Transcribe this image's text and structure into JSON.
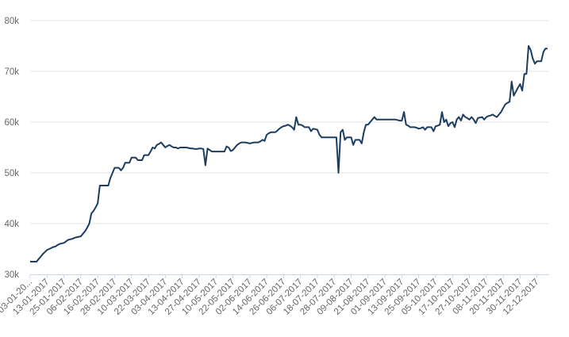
{
  "chart_data": {
    "type": "line",
    "categories": [
      "03-01-20...",
      null,
      null,
      null,
      null,
      null,
      null,
      null,
      "13-01-2017",
      null,
      null,
      null,
      null,
      null,
      null,
      null,
      "25-01-2017",
      null,
      null,
      null,
      null,
      null,
      null,
      null,
      "06-02-2017",
      null,
      null,
      null,
      null,
      null,
      null,
      null,
      "16-02-2017",
      null,
      null,
      null,
      null,
      null,
      null,
      null,
      "28-02-2017",
      null,
      null,
      null,
      null,
      null,
      null,
      null,
      "10-03-2017",
      null,
      null,
      null,
      null,
      null,
      null,
      null,
      "22-03-2017",
      null,
      null,
      null,
      null,
      null,
      null,
      null,
      "03-04-2017",
      null,
      null,
      null,
      null,
      null,
      null,
      null,
      "13-04-2017",
      null,
      null,
      null,
      null,
      null,
      null,
      null,
      "27-04-2017",
      null,
      null,
      null,
      null,
      null,
      null,
      null,
      "10-05-2017",
      null,
      null,
      null,
      null,
      null,
      null,
      null,
      "22-05-2017",
      null,
      null,
      null,
      null,
      null,
      null,
      null,
      "02-06-2017",
      null,
      null,
      null,
      null,
      null,
      null,
      null,
      "14-06-2017",
      null,
      null,
      null,
      null,
      null,
      null,
      null,
      "26-06-2017",
      null,
      null,
      null,
      null,
      null,
      null,
      null,
      "06-07-2017",
      null,
      null,
      null,
      null,
      null,
      null,
      null,
      "18-07-2017",
      null,
      null,
      null,
      null,
      null,
      null,
      null,
      "28-07-2017",
      null,
      null,
      null,
      null,
      null,
      null,
      null,
      "09-08-2017",
      null,
      null,
      null,
      null,
      null,
      null,
      null,
      "21-08-2017",
      null,
      null,
      null,
      null,
      null,
      null,
      null,
      "01-09-2017",
      null,
      null,
      null,
      null,
      null,
      null,
      null,
      "13-09-2017",
      null,
      null,
      null,
      null,
      null,
      null,
      null,
      "25-09-2017",
      null,
      null,
      null,
      null,
      null,
      null,
      null,
      "05-10-2017",
      null,
      null,
      null,
      null,
      null,
      null,
      null,
      "17-10-2017",
      null,
      null,
      null,
      null,
      null,
      null,
      null,
      "27-10-2017",
      null,
      null,
      null,
      null,
      null,
      null,
      null,
      "08-11-2017",
      null,
      null,
      null,
      null,
      null,
      null,
      null,
      "20-11-2017",
      null,
      null,
      null,
      null,
      null,
      null,
      null,
      "30-11-2017",
      null,
      null,
      null,
      null,
      null,
      null,
      null,
      "12-12-2017",
      null,
      null,
      null,
      null,
      null
    ],
    "values": [
      32500,
      32500,
      32500,
      32500,
      33000,
      33500,
      34000,
      34400,
      34800,
      35000,
      35200,
      35400,
      35500,
      35800,
      36000,
      36100,
      36200,
      36500,
      36800,
      36900,
      37000,
      37200,
      37300,
      37400,
      37500,
      38000,
      38500,
      39200,
      40000,
      42000,
      42500,
      43200,
      44000,
      47500,
      47500,
      47500,
      47500,
      47500,
      49000,
      50000,
      51000,
      51000,
      51000,
      50500,
      51000,
      52000,
      52000,
      52000,
      53000,
      53000,
      53000,
      52500,
      52500,
      52500,
      53500,
      53500,
      53500,
      54200,
      55000,
      54800,
      55500,
      55700,
      56000,
      55500,
      55000,
      55300,
      55500,
      55200,
      55000,
      55000,
      54800,
      55000,
      55000,
      55000,
      55000,
      54900,
      54800,
      54800,
      54700,
      54700,
      54800,
      54800,
      54700,
      51500,
      54800,
      54500,
      54200,
      54200,
      54200,
      54200,
      54200,
      54200,
      54200,
      55200,
      55000,
      54300,
      54500,
      55000,
      55500,
      55800,
      56000,
      56000,
      56000,
      55900,
      55800,
      55900,
      56000,
      56000,
      56000,
      56200,
      56500,
      56300,
      57500,
      57800,
      58000,
      58000,
      58000,
      58300,
      58700,
      59000,
      59200,
      59300,
      59500,
      59300,
      59000,
      58500,
      61000,
      59500,
      59500,
      59300,
      59000,
      59000,
      59000,
      58200,
      58700,
      58600,
      58500,
      57500,
      57000,
      57000,
      57000,
      57000,
      57000,
      57000,
      57000,
      57000,
      50000,
      58000,
      58500,
      56500,
      57000,
      57000,
      57000,
      55500,
      56500,
      56500,
      56500,
      55800,
      58000,
      59500,
      59500,
      60000,
      60500,
      61000,
      60500,
      60500,
      60500,
      60500,
      60500,
      60500,
      60500,
      60500,
      60500,
      60500,
      60400,
      60300,
      60300,
      62000,
      59500,
      59300,
      59000,
      59000,
      59000,
      58900,
      58700,
      58800,
      59000,
      58500,
      59000,
      59000,
      59000,
      58200,
      59200,
      59300,
      59500,
      62000,
      60000,
      60500,
      59200,
      59800,
      60000,
      59000,
      60500,
      61000,
      60300,
      61500,
      61000,
      60800,
      60500,
      61000,
      60500,
      59800,
      60800,
      60900,
      61000,
      60500,
      61000,
      61200,
      61300,
      61500,
      61200,
      61000,
      61500,
      62000,
      62800,
      63500,
      63800,
      64000,
      68000,
      65200,
      66000,
      66800,
      67500,
      66200,
      69500,
      69500,
      75000,
      74200,
      72500,
      71500,
      72000,
      72000,
      72000,
      73800,
      74500,
      74500
    ],
    "color": "#1b3d5f",
    "ylim": [
      30000,
      80000
    ],
    "yticks": [
      {
        "value": 30000,
        "label": "30k"
      },
      {
        "value": 40000,
        "label": "40k"
      },
      {
        "value": 50000,
        "label": "50k"
      },
      {
        "value": 60000,
        "label": "60k"
      },
      {
        "value": 70000,
        "label": "70k"
      },
      {
        "value": 80000,
        "label": "80k"
      }
    ],
    "grid": true
  }
}
